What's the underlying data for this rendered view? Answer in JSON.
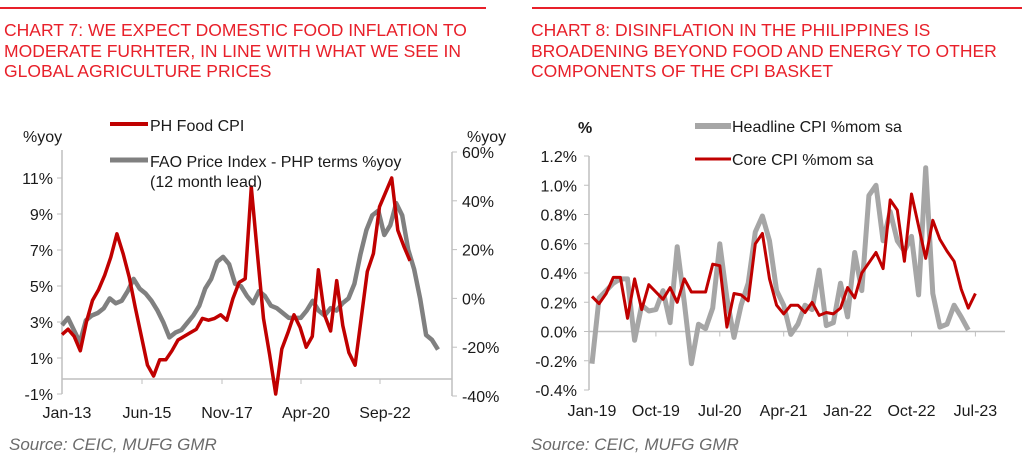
{
  "colors": {
    "title_red": "#e8202a",
    "series_red": "#c00000",
    "series_grey_dark": "#808080",
    "series_grey_light": "#a6a6a6",
    "axis": "#bfbfbf",
    "source_text": "#6b6b6b"
  },
  "chart7": {
    "title_lines": [
      "CHART 7: WE EXPECT DOMESTIC FOOD INFLATION TO",
      "MODERATE FURHTER, IN LINE WITH WHAT WE SEE IN",
      "GLOBAL AGRICULTURE PRICES"
    ],
    "source": "Source: CEIC, MUFG GMR"
  },
  "chart8": {
    "title_lines": [
      "CHART 8: DISINFLATION IN THE PHILIPPINES IS",
      "BROADENING BEYOND FOOD AND ENERGY TO OTHER",
      "COMPONENTS OF THE CPI BASKET"
    ],
    "source": "Source: CEIC, MUFG GMR"
  },
  "chart_data": [
    {
      "type": "line",
      "title": "CHART 7: WE EXPECT DOMESTIC FOOD INFLATION TO MODERATE FURHTER, IN LINE WITH WHAT WE SEE IN GLOBAL AGRICULTURE PRICES",
      "ylabel_left": "%yoy",
      "ylabel_right": "%yoy",
      "x_ticks": [
        "Jan-13",
        "Jun-15",
        "Nov-17",
        "Apr-20",
        "Sep-22"
      ],
      "x_range": [
        "Jan-13",
        "Dec-23"
      ],
      "y_left": {
        "ticks": [
          "-1%",
          "1%",
          "3%",
          "5%",
          "7%",
          "9%",
          "11%"
        ],
        "range": [
          -1,
          11
        ]
      },
      "y_right": {
        "ticks": [
          "-40%",
          "-20%",
          "0%",
          "20%",
          "40%",
          "60%"
        ],
        "range": [
          -40,
          60
        ]
      },
      "grid": false,
      "legend_position": "top",
      "series": [
        {
          "name": "PH Food CPI",
          "axis": "left",
          "color": "#c00000",
          "x_start": "Jan-13",
          "frequency": "quarterly",
          "values": [
            2.3,
            2.6,
            2.2,
            1.4,
            3.0,
            4.2,
            4.8,
            5.6,
            6.6,
            7.9,
            6.8,
            5.5,
            3.8,
            2.2,
            0.6,
            0.0,
            0.9,
            0.9,
            1.4,
            2.0,
            2.2,
            2.4,
            2.6,
            3.2,
            3.1,
            3.2,
            3.4,
            3.1,
            4.3,
            5.2,
            5.4,
            10.5,
            6.8,
            3.2,
            1.2,
            -1.0,
            1.5,
            2.4,
            3.4,
            2.7,
            1.6,
            2.2,
            5.9,
            3.4,
            2.5,
            5.3,
            2.8,
            1.3,
            0.6,
            3.2,
            5.8,
            6.8,
            9.4,
            10.2,
            11.0,
            8.1,
            7.2,
            6.4
          ]
        },
        {
          "name": "FAO Price Index - PHP terms %yoy (12 month lead)",
          "axis": "right",
          "color": "#808080",
          "x_start": "Jan-13",
          "frequency": "quarterly",
          "values": [
            -11,
            -8,
            -13,
            -18,
            -9,
            -7,
            -6,
            -4,
            0,
            -2,
            -1,
            3,
            8,
            4,
            2,
            -1,
            -5,
            -10,
            -16,
            -14,
            -13,
            -10,
            -7,
            -3,
            4,
            8,
            15,
            17,
            14,
            6,
            5,
            1,
            -2,
            3,
            1,
            -3,
            -4,
            -6,
            -8,
            -8,
            -8,
            -5,
            -1,
            -5,
            -7,
            -4,
            -5,
            -2,
            0,
            6,
            18,
            28,
            34,
            36,
            26,
            30,
            39,
            34,
            20,
            12,
            0,
            -15,
            -17,
            -21
          ]
        }
      ]
    },
    {
      "type": "line",
      "title": "CHART 8: DISINFLATION IN THE PHILIPPINES IS BROADENING BEYOND FOOD AND ENERGY TO OTHER COMPONENTS OF THE CPI BASKET",
      "ylabel": "%",
      "x_ticks": [
        "Jan-19",
        "Oct-19",
        "Jul-20",
        "Apr-21",
        "Jan-22",
        "Oct-22",
        "Jul-23"
      ],
      "x_range": [
        "Jan-19",
        "Jul-23"
      ],
      "y": {
        "ticks": [
          "-0.4%",
          "-0.2%",
          "0.0%",
          "0.2%",
          "0.4%",
          "0.6%",
          "0.8%",
          "1.0%",
          "1.2%"
        ],
        "range": [
          -0.4,
          1.2
        ]
      },
      "grid": false,
      "legend_position": "top",
      "series": [
        {
          "name": "Headline CPI %mom sa",
          "color": "#a6a6a6",
          "x_start": "Jan-19",
          "frequency": "monthly",
          "values": [
            -0.22,
            0.23,
            0.28,
            0.33,
            0.36,
            0.36,
            -0.06,
            0.18,
            0.14,
            0.15,
            0.28,
            0.06,
            0.58,
            0.2,
            -0.22,
            0.05,
            0.02,
            0.16,
            0.6,
            0.23,
            -0.04,
            0.18,
            0.33,
            0.68,
            0.79,
            0.62,
            0.28,
            0.18,
            -0.02,
            0.05,
            0.18,
            0.15,
            0.42,
            0.04,
            0.06,
            0.33,
            0.1,
            0.54,
            0.28,
            0.93,
            1.0,
            0.62,
            0.82,
            0.62,
            0.55,
            0.65,
            0.25,
            1.12,
            0.26,
            0.03,
            0.05,
            0.18,
            0.1,
            0.01
          ]
        },
        {
          "name": "Core CPI %mom sa",
          "color": "#c00000",
          "x_start": "Jan-19",
          "frequency": "monthly",
          "values": [
            0.24,
            0.19,
            0.26,
            0.37,
            0.37,
            0.09,
            0.36,
            0.15,
            0.32,
            0.27,
            0.22,
            0.3,
            0.2,
            0.36,
            0.27,
            0.27,
            0.27,
            0.46,
            0.45,
            0.03,
            0.26,
            0.25,
            0.21,
            0.6,
            0.67,
            0.36,
            0.18,
            0.12,
            0.18,
            0.18,
            0.13,
            0.2,
            0.11,
            0.13,
            0.12,
            0.16,
            0.3,
            0.23,
            0.4,
            0.47,
            0.54,
            0.43,
            0.9,
            0.83,
            0.48,
            0.94,
            0.72,
            0.5,
            0.76,
            0.63,
            0.55,
            0.48,
            0.29,
            0.16,
            0.26
          ]
        }
      ]
    }
  ]
}
